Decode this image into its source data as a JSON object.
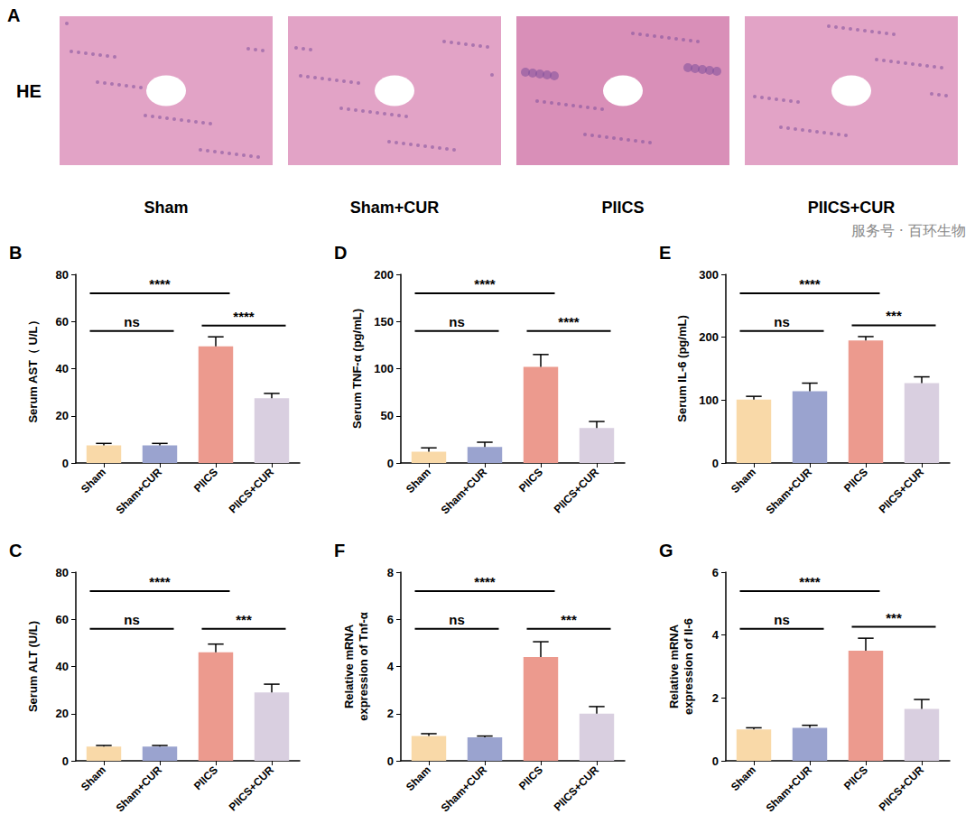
{
  "images": {
    "panel": "A",
    "stain": "HE",
    "groups": [
      "Sham",
      "Sham+CUR",
      "PIICS",
      "PIICS+CUR"
    ]
  },
  "watermark": "服务号 · 百环生物",
  "chart_data": [
    {
      "type": "bar",
      "panel": "B",
      "ylabel": "Serum AST（ U/L）",
      "categories": [
        "Sham",
        "Sham+CUR",
        "PIICS",
        "PIICS+CUR"
      ],
      "values": [
        7.5,
        7.5,
        49.5,
        27.5
      ],
      "errors": [
        0.8,
        0.8,
        4,
        2
      ],
      "colors": [
        "#f9d9a8",
        "#9aa3cf",
        "#ec9a8e",
        "#d9cfe0"
      ],
      "ylim": [
        0,
        80
      ],
      "yticks": [
        0,
        20,
        40,
        60,
        80
      ],
      "annotations": [
        {
          "between": [
            "Sham",
            "PIICS"
          ],
          "label": "****"
        },
        {
          "between": [
            "Sham",
            "Sham+CUR"
          ],
          "label": "ns"
        },
        {
          "between": [
            "PIICS",
            "PIICS+CUR"
          ],
          "label": "****"
        }
      ]
    },
    {
      "type": "bar",
      "panel": "C",
      "ylabel": "Serum ALT (U/L)",
      "categories": [
        "Sham",
        "Sham+CUR",
        "PIICS",
        "PIICS+CUR"
      ],
      "values": [
        6,
        6,
        46,
        29
      ],
      "errors": [
        0.5,
        0.5,
        3.5,
        3.5
      ],
      "colors": [
        "#f9d9a8",
        "#9aa3cf",
        "#ec9a8e",
        "#d9cfe0"
      ],
      "ylim": [
        0,
        80
      ],
      "yticks": [
        0,
        20,
        40,
        60,
        80
      ],
      "annotations": [
        {
          "between": [
            "Sham",
            "PIICS"
          ],
          "label": "****"
        },
        {
          "between": [
            "Sham",
            "Sham+CUR"
          ],
          "label": "ns"
        },
        {
          "between": [
            "PIICS",
            "PIICS+CUR"
          ],
          "label": "***"
        }
      ]
    },
    {
      "type": "bar",
      "panel": "D",
      "ylabel": "Serum TNF-α (pg/mL)",
      "categories": [
        "Sham",
        "Sham+CUR",
        "PIICS",
        "PIICS+CUR"
      ],
      "values": [
        12,
        17,
        102,
        37
      ],
      "errors": [
        4,
        5,
        13,
        7
      ],
      "colors": [
        "#f9d9a8",
        "#9aa3cf",
        "#ec9a8e",
        "#d9cfe0"
      ],
      "ylim": [
        0,
        200
      ],
      "yticks": [
        0,
        50,
        100,
        150,
        200
      ],
      "annotations": [
        {
          "between": [
            "Sham",
            "PIICS"
          ],
          "label": "****"
        },
        {
          "between": [
            "Sham",
            "Sham+CUR"
          ],
          "label": "ns"
        },
        {
          "between": [
            "PIICS",
            "PIICS+CUR"
          ],
          "label": "****"
        }
      ]
    },
    {
      "type": "bar",
      "panel": "E",
      "ylabel": "Serum IL-6 (pg/mL)",
      "categories": [
        "Sham",
        "Sham+CUR",
        "PIICS",
        "PIICS+CUR"
      ],
      "values": [
        101,
        114,
        195,
        127
      ],
      "errors": [
        5,
        13,
        6,
        10
      ],
      "colors": [
        "#f9d9a8",
        "#9aa3cf",
        "#ec9a8e",
        "#d9cfe0"
      ],
      "ylim": [
        0,
        300
      ],
      "yticks": [
        0,
        100,
        200,
        300
      ],
      "annotations": [
        {
          "between": [
            "Sham",
            "PIICS"
          ],
          "label": "****"
        },
        {
          "between": [
            "Sham",
            "Sham+CUR"
          ],
          "label": "ns"
        },
        {
          "between": [
            "PIICS",
            "PIICS+CUR"
          ],
          "label": "***"
        }
      ]
    },
    {
      "type": "bar",
      "panel": "F",
      "ylabel": "Relative mRNA expression of Tnf-α",
      "categories": [
        "Sham",
        "Sham+CUR",
        "PIICS",
        "PIICS+CUR"
      ],
      "values": [
        1.05,
        1.0,
        4.4,
        2.0
      ],
      "errors": [
        0.1,
        0.05,
        0.65,
        0.3
      ],
      "colors": [
        "#f9d9a8",
        "#9aa3cf",
        "#ec9a8e",
        "#d9cfe0"
      ],
      "ylim": [
        0,
        8
      ],
      "yticks": [
        0,
        2,
        4,
        6,
        8
      ],
      "annotations": [
        {
          "between": [
            "Sham",
            "PIICS"
          ],
          "label": "****"
        },
        {
          "between": [
            "Sham",
            "Sham+CUR"
          ],
          "label": "ns"
        },
        {
          "between": [
            "PIICS",
            "PIICS+CUR"
          ],
          "label": "***"
        }
      ]
    },
    {
      "type": "bar",
      "panel": "G",
      "ylabel": "Relative mRNA expression of Il-6",
      "categories": [
        "Sham",
        "Sham+CUR",
        "PIICS",
        "PIICS+CUR"
      ],
      "values": [
        1.0,
        1.05,
        3.5,
        1.65
      ],
      "errors": [
        0.05,
        0.08,
        0.4,
        0.3
      ],
      "colors": [
        "#f9d9a8",
        "#9aa3cf",
        "#ec9a8e",
        "#d9cfe0"
      ],
      "ylim": [
        0,
        6
      ],
      "yticks": [
        0,
        2,
        4,
        6
      ],
      "annotations": [
        {
          "between": [
            "Sham",
            "PIICS"
          ],
          "label": "****"
        },
        {
          "between": [
            "Sham",
            "Sham+CUR"
          ],
          "label": "ns"
        },
        {
          "between": [
            "PIICS",
            "PIICS+CUR"
          ],
          "label": "***"
        }
      ]
    }
  ]
}
